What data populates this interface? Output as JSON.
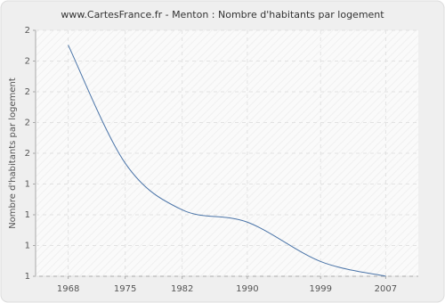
{
  "chart_data": {
    "type": "line",
    "title": "www.CartesFrance.fr - Menton : Nombre d'habitants par logement",
    "y_label": "Nombre d'habitants par logement",
    "x": [
      1968,
      1975,
      1982,
      1990,
      1999,
      2007
    ],
    "values": [
      1.94,
      1.46,
      1.27,
      1.22,
      1.06,
      1.0
    ],
    "color": "#4a74a8",
    "xlim": [
      1964,
      2011
    ],
    "xticks": [
      1968,
      1975,
      1982,
      1990,
      1999,
      2007
    ],
    "ylim": [
      1,
      2
    ],
    "yticks": [
      1,
      {
        "value": 1.125,
        "label": "1"
      },
      {
        "value": 1.25,
        "label": "1"
      },
      {
        "value": 1.375,
        "label": "1"
      },
      {
        "value": 1.5,
        "label": "2"
      },
      {
        "value": 1.625,
        "label": "2"
      },
      {
        "value": 1.75,
        "label": "2"
      },
      {
        "value": 1.875,
        "label": "2"
      },
      2
    ],
    "grid": true
  }
}
